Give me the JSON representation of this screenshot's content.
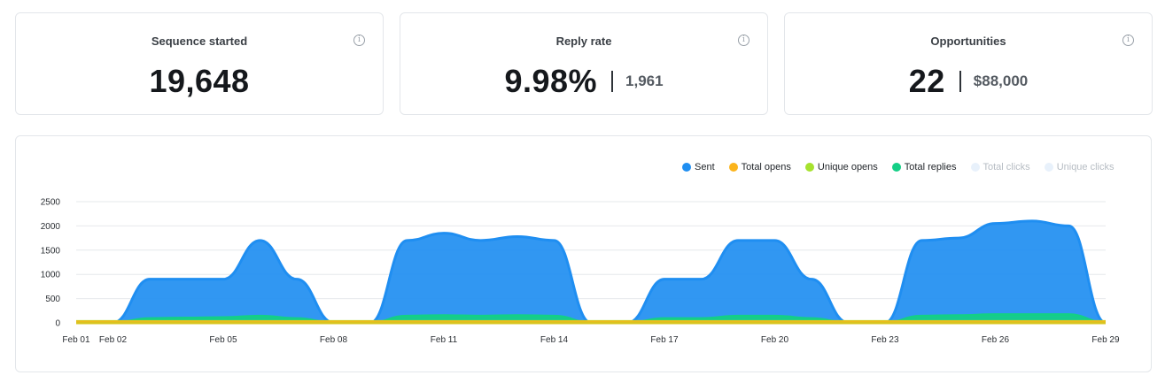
{
  "stats": [
    {
      "title": "Sequence started",
      "value": "19,648",
      "sub": ""
    },
    {
      "title": "Reply rate",
      "value": "9.98%",
      "sub": "1,961"
    },
    {
      "title": "Opportunities",
      "value": "22",
      "sub": "$88,000"
    }
  ],
  "info_icon": "i",
  "legend": [
    {
      "name": "Sent",
      "color": "#1f8ef1",
      "active": true
    },
    {
      "name": "Total opens",
      "color": "#fbb41c",
      "active": true
    },
    {
      "name": "Unique opens",
      "color": "#a6e22e",
      "active": true
    },
    {
      "name": "Total replies",
      "color": "#14cf86",
      "active": true
    },
    {
      "name": "Total clicks",
      "color": "#e8f1fb",
      "active": false
    },
    {
      "name": "Unique clicks",
      "color": "#e8f1fb",
      "active": false
    }
  ],
  "chart_data": {
    "type": "area",
    "x": [
      "Feb 01",
      "Feb 02",
      "Feb 03",
      "Feb 04",
      "Feb 05",
      "Feb 06",
      "Feb 07",
      "Feb 08",
      "Feb 09",
      "Feb 10",
      "Feb 11",
      "Feb 12",
      "Feb 13",
      "Feb 14",
      "Feb 15",
      "Feb 16",
      "Feb 17",
      "Feb 18",
      "Feb 19",
      "Feb 20",
      "Feb 21",
      "Feb 22",
      "Feb 23",
      "Feb 24",
      "Feb 25",
      "Feb 26",
      "Feb 27",
      "Feb 28",
      "Feb 29"
    ],
    "x_tick_labels": [
      "Feb 01",
      "Feb 02",
      "Feb 05",
      "Feb 08",
      "Feb 11",
      "Feb 14",
      "Feb 17",
      "Feb 20",
      "Feb 23",
      "Feb 26",
      "Feb 29"
    ],
    "ylim": [
      0,
      2500
    ],
    "y_ticks": [
      0,
      500,
      1000,
      1500,
      2000,
      2500
    ],
    "grid": true,
    "legend_position": "top-right",
    "series": [
      {
        "name": "Sent",
        "color": "#1f8ef1",
        "values": [
          0,
          0,
          900,
          900,
          900,
          1700,
          900,
          0,
          0,
          1700,
          1850,
          1700,
          1780,
          1700,
          0,
          0,
          900,
          900,
          1700,
          1700,
          900,
          0,
          0,
          1700,
          1750,
          2050,
          2100,
          2000,
          0
        ]
      },
      {
        "name": "Total replies",
        "color": "#14cf86",
        "values": [
          0,
          0,
          90,
          100,
          110,
          140,
          90,
          0,
          0,
          140,
          150,
          140,
          150,
          140,
          0,
          0,
          90,
          90,
          140,
          140,
          90,
          0,
          0,
          140,
          150,
          170,
          170,
          170,
          0
        ]
      },
      {
        "name": "Unique opens",
        "color": "#a6e22e",
        "values": [
          30,
          30,
          30,
          30,
          30,
          30,
          30,
          30,
          30,
          30,
          30,
          30,
          30,
          30,
          30,
          30,
          30,
          30,
          30,
          30,
          30,
          30,
          30,
          30,
          30,
          30,
          30,
          30,
          30
        ]
      },
      {
        "name": "Total opens",
        "color": "#fbb41c",
        "values": [
          20,
          20,
          20,
          20,
          20,
          20,
          20,
          20,
          20,
          20,
          20,
          20,
          20,
          20,
          20,
          20,
          20,
          20,
          20,
          20,
          20,
          20,
          20,
          20,
          20,
          20,
          20,
          20,
          20
        ]
      }
    ]
  }
}
